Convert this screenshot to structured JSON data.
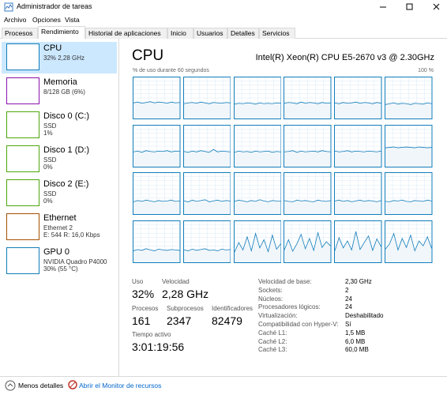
{
  "window": {
    "title": "Administrador de tareas"
  },
  "menu": [
    "Archivo",
    "Opciones",
    "Vista"
  ],
  "tabs": [
    "Procesos",
    "Rendimiento",
    "Historial de aplicaciones",
    "Inicio",
    "Usuarios",
    "Detalles",
    "Servicios"
  ],
  "active_tab": 1,
  "sidebar": [
    {
      "name": "CPU",
      "lines": [
        "32% 2,28 GHz"
      ],
      "color": "#117dbb"
    },
    {
      "name": "Memoria",
      "lines": [
        "8/128 GB (6%)"
      ],
      "color": "#8b12ae"
    },
    {
      "name": "Disco 0 (C:)",
      "lines": [
        "SSD",
        "1%"
      ],
      "color": "#4da60c"
    },
    {
      "name": "Disco 1 (D:)",
      "lines": [
        "SSD",
        "0%"
      ],
      "color": "#4da60c"
    },
    {
      "name": "Disco 2 (E:)",
      "lines": [
        "SSD",
        "0%"
      ],
      "color": "#4da60c"
    },
    {
      "name": "Ethernet",
      "lines": [
        "Ethernet 2",
        "E: 544 R: 16,0 Kbps"
      ],
      "color": "#a74f01"
    },
    {
      "name": "GPU 0",
      "lines": [
        "NVIDIA Quadro P4000",
        "30% (55 °C)"
      ],
      "color": "#117dbb"
    }
  ],
  "selected_item": 0,
  "main": {
    "title": "CPU",
    "processor": "Intel(R) Xeon(R) CPU E5-2670 v3 @ 2.30GHz",
    "graph_label": "% de uso durante 60 segundos",
    "graph_max": "100 %",
    "cores": [
      [
        38,
        40,
        37,
        39,
        41,
        38,
        40,
        39,
        37,
        40,
        38,
        39
      ],
      [
        36,
        38,
        39,
        37,
        40,
        38,
        36,
        39,
        38,
        37,
        39,
        38
      ],
      [
        35,
        37,
        36,
        38,
        37,
        35,
        38,
        36,
        37,
        36,
        38,
        37
      ],
      [
        37,
        39,
        38,
        36,
        40,
        37,
        39,
        38,
        36,
        39,
        37,
        38
      ],
      [
        38,
        36,
        39,
        37,
        38,
        40,
        37,
        39,
        38,
        36,
        39,
        37
      ],
      [
        34,
        36,
        38,
        35,
        37,
        36,
        34,
        37,
        36,
        35,
        38,
        36
      ],
      [
        36,
        38,
        35,
        39,
        37,
        36,
        38,
        37,
        39,
        36,
        38,
        37
      ],
      [
        37,
        35,
        38,
        36,
        39,
        37,
        35,
        42,
        36,
        38,
        37,
        36
      ],
      [
        35,
        38,
        36,
        37,
        35,
        38,
        36,
        37,
        38,
        35,
        37,
        36
      ],
      [
        36,
        37,
        39,
        35,
        38,
        36,
        37,
        38,
        36,
        39,
        37,
        36
      ],
      [
        38,
        36,
        37,
        39,
        36,
        38,
        37,
        36,
        38,
        37,
        36,
        38
      ],
      [
        46,
        47,
        48,
        46,
        47,
        48,
        47,
        46,
        48,
        47,
        46,
        47
      ],
      [
        30,
        33,
        31,
        34,
        32,
        30,
        33,
        31,
        32,
        34,
        31,
        32
      ],
      [
        32,
        30,
        34,
        31,
        33,
        35,
        30,
        32,
        34,
        31,
        33,
        32
      ],
      [
        31,
        34,
        32,
        30,
        33,
        31,
        35,
        32,
        30,
        33,
        32,
        31
      ],
      [
        33,
        31,
        30,
        34,
        32,
        33,
        31,
        30,
        34,
        32,
        31,
        33
      ],
      [
        32,
        34,
        31,
        33,
        30,
        32,
        34,
        31,
        33,
        32,
        30,
        33
      ],
      [
        31,
        30,
        33,
        32,
        34,
        31,
        30,
        33,
        32,
        31,
        34,
        32
      ],
      [
        28,
        31,
        29,
        33,
        30,
        28,
        32,
        30,
        29,
        31,
        30,
        29
      ],
      [
        30,
        28,
        32,
        29,
        31,
        33,
        29,
        30,
        28,
        32,
        30,
        31
      ],
      [
        25,
        48,
        30,
        62,
        28,
        70,
        35,
        55,
        26,
        66,
        32,
        45
      ],
      [
        30,
        55,
        27,
        45,
        68,
        33,
        58,
        29,
        72,
        36,
        50,
        40
      ],
      [
        28,
        60,
        35,
        52,
        30,
        75,
        31,
        48,
        64,
        29,
        57,
        38
      ],
      [
        32,
        45,
        70,
        30,
        58,
        36,
        66,
        28,
        52,
        40,
        62,
        34
      ]
    ]
  },
  "stats": {
    "usage_label": "Uso",
    "usage": "32%",
    "speed_label": "Velocidad",
    "speed": "2,28 GHz",
    "processes_label": "Procesos",
    "processes": 161,
    "threads_label": "Subprocesos",
    "threads": 2347,
    "handles_label": "Identificadores",
    "handles": 82479,
    "uptime_label": "Tiempo activo",
    "uptime": "3:01:19:56"
  },
  "details": [
    [
      "Velocidad de base:",
      "2,30 GHz"
    ],
    [
      "Sockets:",
      2
    ],
    [
      "Núcleos:",
      24
    ],
    [
      "Procesadores lógicos:",
      24
    ],
    [
      "Virtualización:",
      "Deshabilitado"
    ],
    [
      "Compatibilidad con Hyper-V:",
      "Sí"
    ],
    [
      "Caché L1:",
      "1,5 MB"
    ],
    [
      "Caché L2:",
      "6,0 MB"
    ],
    [
      "Caché L3:",
      "60,0 MB"
    ]
  ],
  "footer": {
    "less": "Menos detalles",
    "monitor": "Abrir el Monitor de recursos"
  }
}
